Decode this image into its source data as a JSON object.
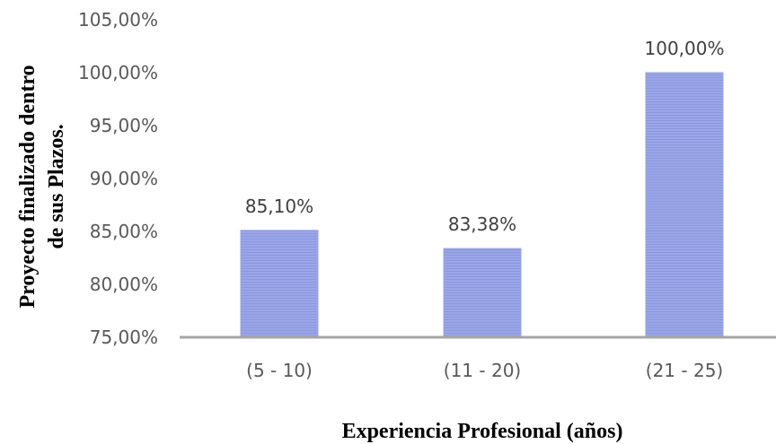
{
  "chart_data": {
    "type": "bar",
    "categories": [
      "(5 - 10)",
      "(11 - 20)",
      "(21 - 25)"
    ],
    "values": [
      85.1,
      83.38,
      100.0
    ],
    "data_labels": [
      "85,10%",
      "83,38%",
      "100,00%"
    ],
    "yticks": [
      75,
      80,
      85,
      90,
      95,
      100,
      105
    ],
    "ytick_labels": [
      "75,00%",
      "80,00%",
      "85,00%",
      "90,00%",
      "95,00%",
      "100,00%",
      "105,00%"
    ],
    "ylim": [
      75,
      105
    ],
    "xlabel": "Experiencia Profesional (años)",
    "ylabel_line1": "Proyecto finalizado dentro",
    "ylabel_line2": "de sus Plazos.",
    "grid": false,
    "bar_color": "#98a4e6",
    "axis_color": "#a6a6a6"
  }
}
